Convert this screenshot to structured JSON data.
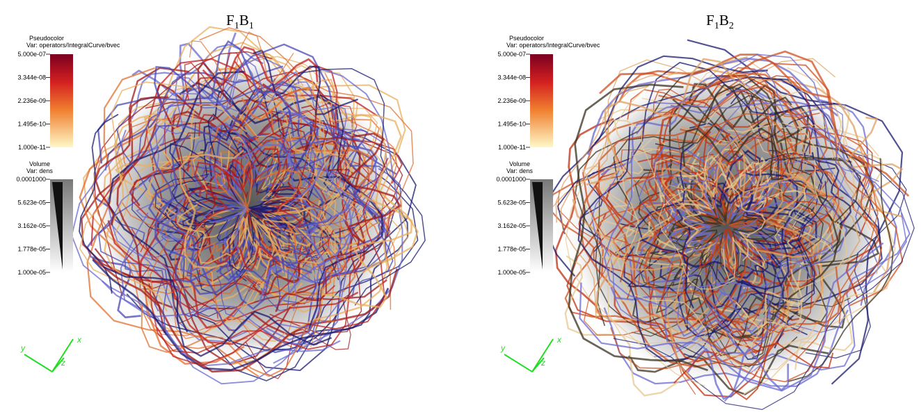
{
  "panels": [
    {
      "title": [
        {
          "text": "F"
        },
        {
          "text": "1",
          "sub": true
        },
        {
          "text": "B"
        },
        {
          "text": "1",
          "sub": true
        }
      ],
      "pseudocolor": {
        "label": "Pseudocolor",
        "var": "Var: operators/IntegralCurve/bvec",
        "ticks": [
          "5.000e-07",
          "3.344e-08",
          "2.236e-09",
          "1.495e-10",
          "1.000e-11"
        ]
      },
      "volume": {
        "label": "Volume",
        "var": "Var: dens",
        "ticks": [
          "0.0001000",
          "5.623e-05",
          "3.162e-05",
          "1.778e-05",
          "1.000e-05"
        ]
      },
      "axes": {
        "x": "x",
        "y": "y",
        "z": "z"
      }
    },
    {
      "title": [
        {
          "text": "F"
        },
        {
          "text": "1",
          "sub": true
        },
        {
          "text": "B"
        },
        {
          "text": "2",
          "sub": true
        }
      ],
      "pseudocolor": {
        "label": "Pseudocolor",
        "var": "Var: operators/IntegralCurve/bvec",
        "ticks": [
          "5.000e-07",
          "3.344e-08",
          "2.236e-09",
          "1.495e-10",
          "1.000e-11"
        ]
      },
      "volume": {
        "label": "Volume",
        "var": "Var: dens",
        "ticks": [
          "0.0001000",
          "5.623e-05",
          "3.162e-05",
          "1.778e-05",
          "1.000e-05"
        ]
      },
      "axes": {
        "x": "x",
        "y": "y",
        "z": "z"
      }
    }
  ]
}
